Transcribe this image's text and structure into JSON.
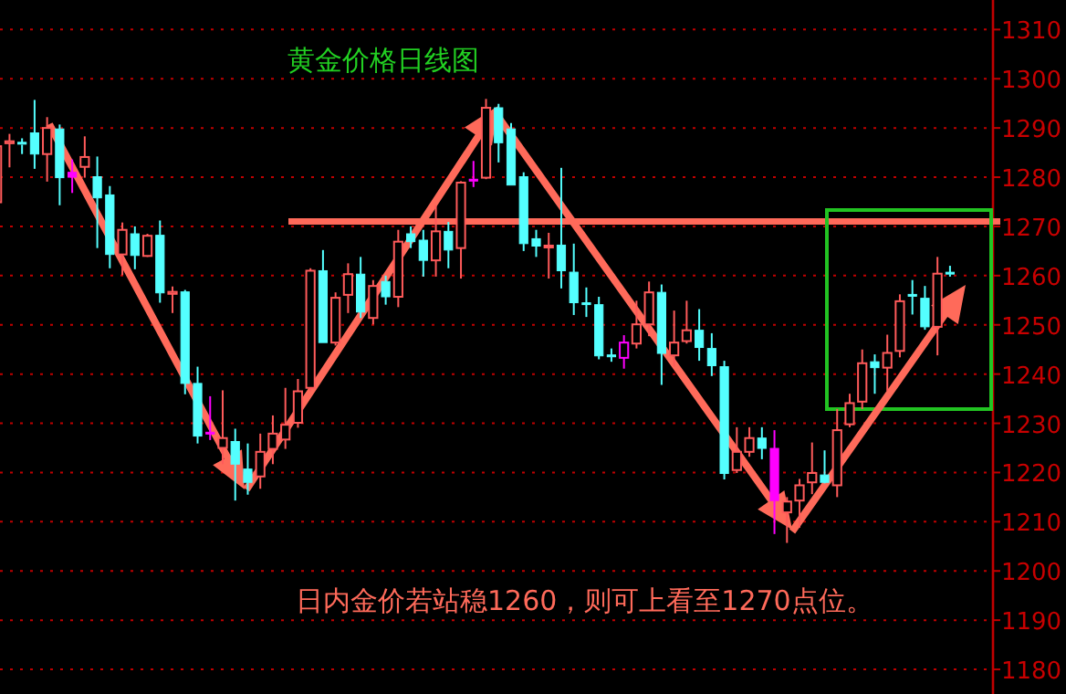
{
  "chart_data": {
    "type": "candlestick",
    "title": "黄金价格日线图",
    "annotations": [
      "日内金价若站稳1260，则可上看至1270点位。"
    ],
    "categories": [
      null,
      null,
      null,
      null,
      null,
      null,
      null,
      null,
      null,
      null,
      null,
      null,
      null,
      null,
      null,
      null,
      null,
      null,
      null,
      null,
      null,
      null,
      null,
      null,
      null,
      null,
      null,
      null,
      null,
      null,
      null,
      null,
      null,
      null,
      null,
      null,
      null,
      null,
      null,
      null,
      null,
      null,
      null,
      null,
      null,
      null,
      null,
      null,
      null,
      null,
      null,
      null,
      null,
      null,
      null,
      null,
      null,
      null,
      null,
      null,
      null,
      null,
      null,
      null,
      null,
      null,
      null,
      null,
      null,
      null,
      null,
      null,
      null,
      null,
      null,
      null,
      null
    ],
    "ohlc": [
      [
        1274.9,
        1286.3,
        1274.9,
        1286.3
      ],
      [
        1286.9,
        1288.8,
        1282,
        1287.3
      ],
      [
        1286.9,
        1287.9,
        1284.7,
        1286.6
      ],
      [
        1289,
        1295.7,
        1281.7,
        1284.7
      ],
      [
        1284.7,
        1292.2,
        1279.1,
        1290
      ],
      [
        1289.8,
        1290.7,
        1274.3,
        1279.9
      ],
      [
        1281,
        1283.6,
        1276.8,
        1280
      ],
      [
        1282.1,
        1288.3,
        1279.9,
        1284.1
      ],
      [
        1280.1,
        1284.2,
        1265.6,
        1275.8
      ],
      [
        1276.4,
        1278.2,
        1261.5,
        1264.3
      ],
      [
        1264.3,
        1270.8,
        1260.1,
        1269.3
      ],
      [
        1268.5,
        1270,
        1261.3,
        1264.1
      ],
      [
        1264,
        1268.5,
        1263.8,
        1268.1
      ],
      [
        1268.2,
        1271.2,
        1254.5,
        1256.5
      ],
      [
        1256.3,
        1257.8,
        1252.4,
        1256.7
      ],
      [
        1256.7,
        1257.1,
        1235.9,
        1238.1
      ],
      [
        1238.1,
        1241.5,
        1225.9,
        1227.4
      ],
      [
        1228,
        1235.5,
        1226.6,
        1227.9
      ],
      [
        1225,
        1236.7,
        1221.7,
        1227
      ],
      [
        1226.3,
        1228.9,
        1214.3,
        1221.7
      ],
      [
        1220.7,
        1225.9,
        1215.5,
        1218
      ],
      [
        1219.2,
        1227.9,
        1216.7,
        1224.2
      ],
      [
        1224.8,
        1231.6,
        1221.7,
        1227.9
      ],
      [
        1226.7,
        1237.2,
        1224.8,
        1229.7
      ],
      [
        1230.1,
        1239,
        1229.1,
        1236.5
      ],
      [
        1237.2,
        1261.5,
        1236.5,
        1261
      ],
      [
        1261,
        1265.2,
        1246.4,
        1246.4
      ],
      [
        1246.4,
        1256.6,
        1245.8,
        1255.5
      ],
      [
        1256.1,
        1262.5,
        1252.4,
        1260.3
      ],
      [
        1260.3,
        1263.8,
        1251.4,
        1252.6
      ],
      [
        1251.4,
        1259.1,
        1250.1,
        1257.9
      ],
      [
        1258.8,
        1260,
        1254.1,
        1255.7
      ],
      [
        1255.7,
        1269.3,
        1253.6,
        1266.9
      ],
      [
        1268.5,
        1270,
        1265.6,
        1266.9
      ],
      [
        1267.2,
        1269.3,
        1259.8,
        1263.1
      ],
      [
        1263.1,
        1274.3,
        1259.8,
        1269
      ],
      [
        1269,
        1270.9,
        1261.5,
        1265.2
      ],
      [
        1265.6,
        1279.2,
        1259.4,
        1278.9
      ],
      [
        1279.4,
        1283.3,
        1278,
        1279.2
      ],
      [
        1279.9,
        1295.9,
        1279.6,
        1294.1
      ],
      [
        1294.1,
        1294.9,
        1283,
        1287
      ],
      [
        1289.8,
        1291,
        1278.4,
        1278.4
      ],
      [
        1280.1,
        1281,
        1265,
        1266.5
      ],
      [
        1267.5,
        1269.3,
        1263.8,
        1266
      ],
      [
        1265.8,
        1268.7,
        1259.4,
        1266.1
      ],
      [
        1266.2,
        1281.9,
        1257.4,
        1261
      ],
      [
        1260.7,
        1266.5,
        1252,
        1254.5
      ],
      [
        1254.3,
        1257.6,
        1251.6,
        1254.1
      ],
      [
        1254.1,
        1255.7,
        1243,
        1243.7
      ],
      [
        1243.7,
        1245.2,
        1242.5,
        1243.5
      ],
      [
        1243.3,
        1247.9,
        1241.1,
        1246.4
      ],
      [
        1246.2,
        1254.9,
        1245.2,
        1250.1
      ],
      [
        1250.1,
        1258.8,
        1247.7,
        1256.6
      ],
      [
        1256.6,
        1258.2,
        1237.8,
        1244.2
      ],
      [
        1243.8,
        1252.9,
        1241.5,
        1246.4
      ],
      [
        1246.7,
        1254.9,
        1246.2,
        1248.9
      ],
      [
        1248.9,
        1253.2,
        1242.7,
        1245.4
      ],
      [
        1245.2,
        1248.3,
        1239.6,
        1241.7
      ],
      [
        1241.5,
        1242.7,
        1218.6,
        1219.8
      ],
      [
        1220.5,
        1229.2,
        1219.9,
        1224.2
      ],
      [
        1224.2,
        1229.2,
        1223.2,
        1227
      ],
      [
        1227,
        1229.2,
        1222.7,
        1224.9
      ],
      [
        1224.9,
        1228.6,
        1207.5,
        1214.3
      ],
      [
        1211.9,
        1215,
        1205.7,
        1214.1
      ],
      [
        1214.3,
        1218.7,
        1208.8,
        1217.4
      ],
      [
        1218,
        1226.1,
        1215.6,
        1219.9
      ],
      [
        1219.5,
        1224.5,
        1217.8,
        1218
      ],
      [
        1217.4,
        1232.9,
        1215,
        1228.6
      ],
      [
        1229.8,
        1236,
        1229.2,
        1234.1
      ],
      [
        1234.4,
        1245,
        1232.9,
        1242.2
      ],
      [
        1242.5,
        1244,
        1236,
        1241.3
      ],
      [
        1241.3,
        1248,
        1236.6,
        1244.3
      ],
      [
        1244.7,
        1256.2,
        1243.4,
        1254.8
      ],
      [
        1256,
        1259.1,
        1252.1,
        1255.8
      ],
      [
        1255.4,
        1257.9,
        1249,
        1249.6
      ],
      [
        1249.6,
        1263.8,
        1243.8,
        1260.4
      ],
      [
        1260.5,
        1262,
        1259.8,
        1260.3
      ]
    ],
    "colors": [
      "#ff5a5a",
      "#ff5a5a",
      "#54ffff",
      "#54ffff",
      "#ff5a5a",
      "#54ffff",
      "#ff00ff",
      "#ff5a5a",
      "#54ffff",
      "#54ffff",
      "#ff5a5a",
      "#54ffff",
      "#ff5a5a",
      "#54ffff",
      "#ff5a5a",
      "#54ffff",
      "#54ffff",
      "#ff00ff",
      "#ff5a5a",
      "#54ffff",
      "#54ffff",
      "#ff5a5a",
      "#ff5a5a",
      "#ff5a5a",
      "#ff5a5a",
      "#ff5a5a",
      "#54ffff",
      "#ff5a5a",
      "#ff5a5a",
      "#54ffff",
      "#ff5a5a",
      "#54ffff",
      "#ff5a5a",
      "#54ffff",
      "#54ffff",
      "#ff5a5a",
      "#54ffff",
      "#ff5a5a",
      "#ff00ff",
      "#ff5a5a",
      "#54ffff",
      "#54ffff",
      "#54ffff",
      "#54ffff",
      "#ff5a5a",
      "#54ffff",
      "#54ffff",
      "#54ffff",
      "#54ffff",
      "#54ffff",
      "#ff00ff",
      "#ff5a5a",
      "#ff5a5a",
      "#54ffff",
      "#ff5a5a",
      "#ff5a5a",
      "#54ffff",
      "#54ffff",
      "#54ffff",
      "#ff5a5a",
      "#ff5a5a",
      "#54ffff",
      "#ff00ff",
      "#ff5a5a",
      "#ff5a5a",
      "#ff5a5a",
      "#54ffff",
      "#ff5a5a",
      "#ff5a5a",
      "#ff5a5a",
      "#54ffff",
      "#ff5a5a",
      "#ff5a5a",
      "#54ffff",
      "#54ffff",
      "#ff5a5a",
      "#54ffff"
    ],
    "ylim": [
      1175,
      1316
    ],
    "yticks": [
      1180,
      1190,
      1200,
      1210,
      1220,
      1230,
      1240,
      1250,
      1260,
      1270,
      1280,
      1290,
      1300,
      1310
    ],
    "grid": "y",
    "ref_lines": [
      {
        "axis": "y",
        "value": 1271,
        "color": "#ff6a5a"
      }
    ]
  }
}
